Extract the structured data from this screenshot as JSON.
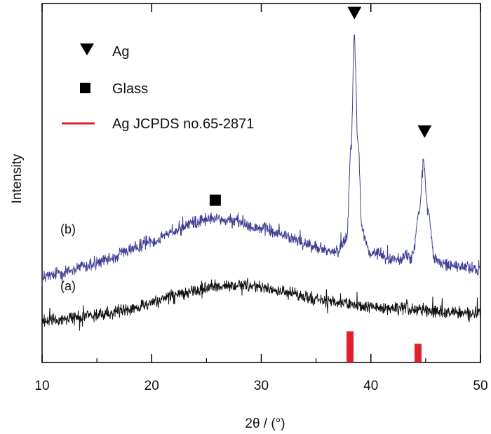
{
  "chart_data": {
    "type": "line",
    "xlabel": "2θ / (°)",
    "ylabel": "Intensity",
    "xlim": [
      10,
      50
    ],
    "xticks": [
      10,
      20,
      30,
      40,
      50
    ],
    "yticks_shown": false,
    "grid": false,
    "legend_position": "top-left",
    "legend": [
      {
        "label": "Ag",
        "marker": "triangle-down",
        "color": "#000000"
      },
      {
        "label": "Glass",
        "marker": "square",
        "color": "#000000"
      },
      {
        "label": "Ag JCPDS no.65-2871",
        "marker": "line",
        "color": "#e0202e"
      }
    ],
    "series": [
      {
        "name": "(b)",
        "color": "#3f3f95",
        "x": [
          10,
          12,
          14,
          16,
          18,
          20,
          22,
          24,
          25,
          26,
          28,
          30,
          32,
          34,
          36,
          37,
          37.8,
          38.2,
          38.5,
          38.8,
          39.2,
          40,
          42,
          43.8,
          44.4,
          44.8,
          45.2,
          45.8,
          47,
          50
        ],
        "y": [
          0.27,
          0.29,
          0.31,
          0.33,
          0.36,
          0.39,
          0.42,
          0.45,
          0.46,
          0.46,
          0.45,
          0.43,
          0.41,
          0.38,
          0.36,
          0.36,
          0.4,
          0.7,
          1.05,
          0.72,
          0.42,
          0.35,
          0.33,
          0.34,
          0.48,
          0.65,
          0.49,
          0.33,
          0.31,
          0.3
        ],
        "noise": 0.025
      },
      {
        "name": "(a)",
        "color": "#111111",
        "x": [
          10,
          12,
          14,
          16,
          18,
          20,
          22,
          24,
          26,
          28,
          30,
          32,
          34,
          36,
          38,
          40,
          42,
          44,
          46,
          48,
          50
        ],
        "y": [
          0.13,
          0.14,
          0.15,
          0.16,
          0.17,
          0.19,
          0.21,
          0.23,
          0.245,
          0.25,
          0.24,
          0.225,
          0.21,
          0.195,
          0.185,
          0.18,
          0.175,
          0.17,
          0.165,
          0.16,
          0.16
        ],
        "noise": 0.025
      }
    ],
    "reference_bars": [
      {
        "x": 38.1,
        "height": 0.1
      },
      {
        "x": 44.3,
        "height": 0.06
      }
    ],
    "markers": [
      {
        "symbol": "triangle-down",
        "x": 38.5,
        "y": 1.12
      },
      {
        "symbol": "triangle-down",
        "x": 44.9,
        "y": 0.74
      },
      {
        "symbol": "square",
        "x": 25.8,
        "y": 0.52
      }
    ]
  }
}
